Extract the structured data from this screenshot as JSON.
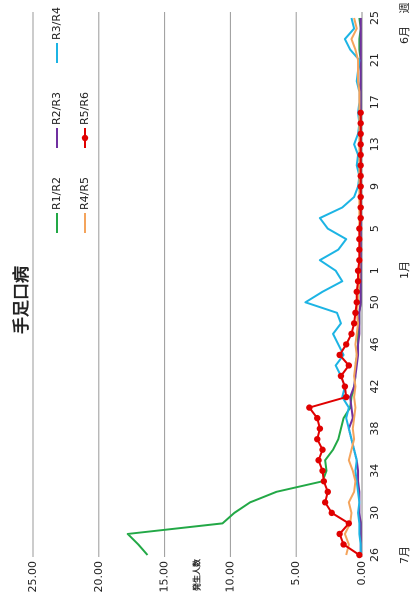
{
  "chart_data": {
    "type": "line",
    "title": "手足口病",
    "y_label": "発生人数",
    "x_unit": "週",
    "month_labels": [
      "7月",
      "1月",
      "6月"
    ],
    "categories": [
      "26",
      null,
      null,
      null,
      "30",
      null,
      null,
      null,
      "34",
      null,
      null,
      null,
      "38",
      null,
      null,
      null,
      "42",
      null,
      null,
      null,
      "46",
      null,
      null,
      null,
      "50",
      null,
      null,
      "1",
      null,
      null,
      null,
      "5",
      null,
      null,
      null,
      "9",
      null,
      null,
      null,
      "13",
      null,
      null,
      null,
      "17",
      null,
      null,
      null,
      "21",
      null,
      null,
      null,
      "25"
    ],
    "ylim": [
      0,
      25
    ],
    "yticks": [
      {
        "value": 0,
        "label": "0.00"
      },
      {
        "value": 5,
        "label": "5.00"
      },
      {
        "value": 10,
        "label": "10.00"
      },
      {
        "value": 15,
        "label": "15.00"
      },
      {
        "value": 20,
        "label": "20.00"
      },
      {
        "value": 25,
        "label": "25.00"
      }
    ],
    "grid": true,
    "series": [
      {
        "name": "R1/R2",
        "color": "#22a846",
        "values": [
          16.3,
          17.0,
          17.8,
          10.6,
          9.7,
          8.5,
          6.5,
          3.0,
          2.7,
          2.8,
          2.2,
          1.8,
          1.6,
          1.4,
          0.9,
          0.8,
          0.6,
          0.5,
          0.5,
          0.4,
          0.3,
          0.3,
          0.2,
          0.2,
          0.1,
          0.1,
          0.1,
          0.1,
          0.1,
          0.1,
          0.1,
          0.1,
          0.1,
          0.1,
          0.1,
          0.1,
          0.1,
          0.1,
          0.1,
          0.1,
          0.1,
          0.1,
          0.1,
          0.1,
          0.1,
          0.1,
          0.1,
          0.1,
          0.2,
          0.2,
          0.1,
          0.2
        ]
      },
      {
        "name": "R2/R3",
        "color": "#7030a0",
        "values": [
          0.1,
          0.1,
          0.1,
          0.1,
          0.2,
          0.2,
          0.2,
          0.3,
          0.3,
          0.4,
          0.6,
          0.8,
          1.0,
          0.7,
          0.8,
          0.9,
          0.6,
          0.5,
          0.4,
          0.3,
          0.3,
          0.2,
          0.2,
          0.2,
          0.1,
          0.1,
          0.1,
          0.1,
          0.1,
          0.1,
          0.1,
          0.1,
          0.1,
          0.1,
          0.1,
          0.1,
          0.1,
          0.1,
          0.1,
          0.1,
          0.1,
          0.1,
          0.1,
          0.1,
          0.1,
          0.1,
          0.1,
          0.1,
          0.1,
          0.1,
          0.1,
          0.1
        ]
      },
      {
        "name": "R3/R4",
        "color": "#1cb4e4",
        "values": [
          0.1,
          0.1,
          0.2,
          0.2,
          0.3,
          0.2,
          0.3,
          0.4,
          0.5,
          0.4,
          0.6,
          0.8,
          1.0,
          1.2,
          1.0,
          1.5,
          1.3,
          1.6,
          2.0,
          1.4,
          1.8,
          2.2,
          1.6,
          1.9,
          4.3,
          3.0,
          1.5,
          2.0,
          3.2,
          1.8,
          1.2,
          2.6,
          3.2,
          1.5,
          0.6,
          0.3,
          0.2,
          0.4,
          0.3,
          0.6,
          0.3,
          0.2,
          0.3,
          0.2,
          0.2,
          0.4,
          0.3,
          0.2,
          0.9,
          1.3,
          0.6,
          0.8
        ]
      },
      {
        "name": "R4/R5",
        "color": "#f4a45c",
        "values": [
          1.2,
          1.0,
          1.3,
          0.9,
          0.8,
          1.0,
          0.6,
          0.5,
          0.7,
          1.0,
          0.8,
          0.6,
          0.7,
          0.6,
          0.5,
          0.6,
          0.5,
          0.6,
          0.5,
          0.4,
          0.5,
          0.4,
          0.3,
          0.4,
          0.3,
          0.3,
          0.2,
          0.2,
          0.2,
          0.2,
          0.2,
          0.2,
          0.2,
          0.2,
          0.2,
          0.2,
          0.2,
          0.2,
          0.2,
          0.2,
          0.2,
          0.2,
          0.2,
          0.2,
          0.2,
          0.3,
          0.3,
          0.3,
          0.5,
          0.8,
          0.4,
          0.6
        ]
      },
      {
        "name": "R5/R6",
        "color": "#e00000",
        "marker": "circle",
        "values": [
          0.2,
          1.4,
          1.7,
          1.0,
          2.3,
          2.8,
          2.6,
          2.9,
          3.0,
          3.3,
          3.0,
          3.4,
          3.2,
          3.4,
          4.0,
          1.2,
          1.3,
          1.6,
          1.0,
          1.7,
          1.2,
          0.8,
          0.6,
          0.5,
          0.4,
          0.4,
          0.3,
          0.3,
          0.2,
          0.2,
          0.2,
          0.2,
          0.1,
          0.1,
          0.1,
          0.1,
          0.1,
          0.1,
          0.1,
          0.1,
          0.1,
          0.1,
          0.1,
          null,
          null,
          null,
          null,
          null,
          null,
          null,
          null,
          null
        ]
      }
    ]
  }
}
